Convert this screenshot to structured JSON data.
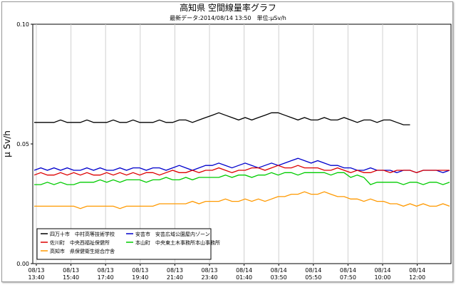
{
  "chart_data": {
    "type": "line",
    "title": "高知県 空間線量率グラフ",
    "subtitle": "最新データ:2014/08/14 13:50　単位:μSv/h",
    "ylabel": "μ Sv/h",
    "xlabel": "",
    "ylim": [
      0,
      0.1
    ],
    "y_ticks": [
      "0.00",
      "0.05",
      "0.10"
    ],
    "x_ticks": [
      [
        "08/13",
        "13:40"
      ],
      [
        "08/13",
        "15:40"
      ],
      [
        "08/13",
        "17:40"
      ],
      [
        "08/13",
        "19:40"
      ],
      [
        "08/13",
        "21:40"
      ],
      [
        "08/13",
        "23:40"
      ],
      [
        "08/14",
        "01:40"
      ],
      [
        "08/14",
        "03:50"
      ],
      [
        "08/14",
        "05:50"
      ],
      [
        "08/14",
        "07:50"
      ],
      [
        "08/14",
        "10:00"
      ],
      [
        "08/14",
        "12:00"
      ]
    ],
    "grid": "vertical",
    "legend_position": "bottom-left",
    "series": [
      {
        "name": "四万十市　中村高等技術学校",
        "color": "#000000",
        "values": [
          0.059,
          0.059,
          0.059,
          0.059,
          0.06,
          0.059,
          0.059,
          0.059,
          0.06,
          0.059,
          0.059,
          0.059,
          0.06,
          0.059,
          0.059,
          0.06,
          0.059,
          0.059,
          0.059,
          0.06,
          0.059,
          0.059,
          0.06,
          0.06,
          0.059,
          0.06,
          0.061,
          0.062,
          0.063,
          0.062,
          0.061,
          0.06,
          0.061,
          0.06,
          0.061,
          0.062,
          0.063,
          0.063,
          0.062,
          0.061,
          0.06,
          0.061,
          0.06,
          0.06,
          0.061,
          0.06,
          0.06,
          0.061,
          0.06,
          0.059,
          0.06,
          0.06,
          0.059,
          0.06,
          0.06,
          0.059,
          0.058,
          0.058
        ]
      },
      {
        "name": "安芸市　安芸広域公園屋内ゾーン",
        "color": "#0000cc",
        "values": [
          0.039,
          0.04,
          0.039,
          0.04,
          0.039,
          0.04,
          0.039,
          0.039,
          0.04,
          0.039,
          0.04,
          0.039,
          0.039,
          0.04,
          0.039,
          0.04,
          0.04,
          0.039,
          0.04,
          0.04,
          0.039,
          0.04,
          0.041,
          0.04,
          0.039,
          0.04,
          0.041,
          0.041,
          0.042,
          0.041,
          0.04,
          0.041,
          0.042,
          0.041,
          0.04,
          0.041,
          0.042,
          0.041,
          0.042,
          0.043,
          0.044,
          0.043,
          0.042,
          0.043,
          0.042,
          0.041,
          0.041,
          0.04,
          0.04,
          0.039,
          0.039,
          0.04,
          0.039,
          0.039,
          0.039,
          0.038,
          0.039,
          0.039,
          0.038,
          0.039,
          0.039,
          0.039,
          0.038,
          0.039
        ]
      },
      {
        "name": "佐川町　中央西福祉保健所",
        "color": "#dd0000",
        "values": [
          0.037,
          0.038,
          0.037,
          0.037,
          0.038,
          0.037,
          0.038,
          0.037,
          0.038,
          0.037,
          0.037,
          0.038,
          0.037,
          0.038,
          0.037,
          0.038,
          0.037,
          0.038,
          0.038,
          0.037,
          0.038,
          0.039,
          0.038,
          0.038,
          0.039,
          0.038,
          0.039,
          0.039,
          0.04,
          0.039,
          0.038,
          0.039,
          0.039,
          0.04,
          0.04,
          0.039,
          0.04,
          0.041,
          0.04,
          0.04,
          0.041,
          0.04,
          0.04,
          0.04,
          0.039,
          0.039,
          0.04,
          0.039,
          0.038,
          0.039,
          0.038,
          0.038,
          0.039,
          0.039,
          0.038,
          0.039,
          0.039,
          0.039,
          0.038,
          0.039,
          0.039,
          0.039,
          0.039,
          0.039
        ]
      },
      {
        "name": "本山町　中央東土木事務所本山事務所",
        "color": "#00cc00",
        "values": [
          0.033,
          0.033,
          0.034,
          0.033,
          0.034,
          0.033,
          0.033,
          0.034,
          0.034,
          0.034,
          0.035,
          0.034,
          0.035,
          0.034,
          0.035,
          0.035,
          0.035,
          0.034,
          0.035,
          0.035,
          0.036,
          0.035,
          0.035,
          0.036,
          0.035,
          0.036,
          0.036,
          0.036,
          0.036,
          0.037,
          0.036,
          0.037,
          0.037,
          0.036,
          0.037,
          0.037,
          0.038,
          0.037,
          0.038,
          0.038,
          0.037,
          0.038,
          0.038,
          0.038,
          0.038,
          0.037,
          0.038,
          0.038,
          0.036,
          0.037,
          0.036,
          0.033,
          0.034,
          0.034,
          0.034,
          0.034,
          0.033,
          0.034,
          0.034,
          0.033,
          0.034,
          0.034,
          0.033,
          0.034
        ]
      },
      {
        "name": "高知市　県保健衛生総合庁舎",
        "color": "#ff9900",
        "values": [
          0.024,
          0.024,
          0.024,
          0.024,
          0.024,
          0.024,
          0.024,
          0.023,
          0.024,
          0.024,
          0.024,
          0.024,
          0.024,
          0.023,
          0.024,
          0.024,
          0.024,
          0.024,
          0.024,
          0.025,
          0.025,
          0.025,
          0.025,
          0.025,
          0.026,
          0.025,
          0.026,
          0.026,
          0.026,
          0.027,
          0.026,
          0.026,
          0.027,
          0.026,
          0.027,
          0.026,
          0.027,
          0.028,
          0.028,
          0.029,
          0.029,
          0.03,
          0.029,
          0.029,
          0.03,
          0.029,
          0.028,
          0.028,
          0.027,
          0.027,
          0.026,
          0.027,
          0.026,
          0.026,
          0.025,
          0.025,
          0.024,
          0.025,
          0.024,
          0.025,
          0.024,
          0.024,
          0.025,
          0.024
        ]
      }
    ]
  }
}
